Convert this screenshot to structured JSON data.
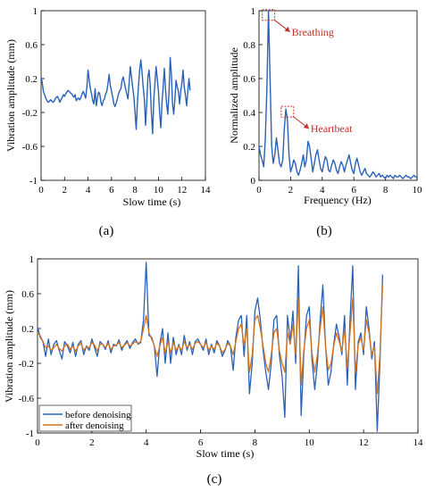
{
  "colors": {
    "blue": "#2a62b8",
    "orange": "#d2731d",
    "annotation": "#c0302a"
  },
  "chart_data": [
    {
      "panel_label": "(a)",
      "type": "line",
      "xlabel": "Slow time (s)",
      "ylabel": "Vibration amplitude (mm)",
      "xlim": [
        0,
        14
      ],
      "ylim": [
        -1,
        1
      ],
      "xticks": [
        "0",
        "2",
        "4",
        "6",
        "8",
        "10",
        "12",
        "14"
      ],
      "yticks": [
        "1",
        "0.6",
        "0.2",
        "-0.2",
        "-0.6",
        "-1"
      ],
      "x": [
        0.0,
        0.1,
        0.2,
        0.3,
        0.4,
        0.5,
        0.6,
        0.7,
        0.8,
        0.9,
        1.0,
        1.1,
        1.2,
        1.3,
        1.4,
        1.5,
        1.6,
        1.7,
        1.8,
        1.9,
        2.0,
        2.1,
        2.2,
        2.3,
        2.4,
        2.5,
        2.6,
        2.7,
        2.8,
        2.9,
        3.0,
        3.1,
        3.2,
        3.3,
        3.4,
        3.5,
        3.6,
        3.7,
        3.8,
        3.9,
        4.0,
        4.1,
        4.2,
        4.3,
        4.4,
        4.5,
        4.6,
        4.7,
        4.8,
        4.9,
        5.0,
        5.1,
        5.2,
        5.3,
        5.4,
        5.5,
        5.6,
        5.7,
        5.8,
        5.9,
        6.0,
        6.1,
        6.2,
        6.3,
        6.4,
        6.5,
        6.6,
        6.7,
        6.8,
        6.9,
        7.0,
        7.1,
        7.2,
        7.3,
        7.4,
        7.5,
        7.6,
        7.7,
        7.8,
        7.9,
        8.0,
        8.1,
        8.2,
        8.3,
        8.4,
        8.5,
        8.6,
        8.7,
        8.8,
        8.9,
        9.0,
        9.1,
        9.2,
        9.3,
        9.4,
        9.5,
        9.6,
        9.7,
        9.8,
        9.9,
        10.0,
        10.1,
        10.2,
        10.3,
        10.4,
        10.5,
        10.6,
        10.7,
        10.8,
        10.9,
        11.0,
        11.1,
        11.2,
        11.3,
        11.4,
        11.5,
        11.6,
        11.7,
        11.8,
        11.9,
        12.0,
        12.1,
        12.2,
        12.3,
        12.4,
        12.5,
        12.6,
        12.7
      ],
      "values": [
        0.22,
        0.15,
        0.05,
        0.01,
        -0.03,
        -0.06,
        -0.08,
        -0.07,
        -0.05,
        -0.06,
        -0.08,
        -0.07,
        -0.04,
        -0.02,
        -0.01,
        -0.04,
        -0.08,
        -0.05,
        -0.02,
        0.01,
        -0.01,
        0.02,
        0.04,
        0.06,
        0.05,
        0.03,
        0.02,
        0.0,
        -0.02,
        0.01,
        -0.06,
        -0.04,
        -0.03,
        -0.05,
        -0.02,
        0.02,
        0.05,
        0.01,
        -0.03,
        0.1,
        0.3,
        0.18,
        0.08,
        0.02,
        -0.06,
        -0.1,
        0.08,
        -0.12,
        -0.03,
        0.04,
        0.02,
        -0.08,
        -0.12,
        -0.06,
        -0.04,
        0.02,
        0.05,
        0.14,
        0.25,
        0.12,
        0.05,
        -0.02,
        -0.1,
        -0.13,
        -0.09,
        -0.04,
        0.02,
        0.06,
        0.08,
        0.18,
        0.22,
        0.15,
        0.08,
        0.02,
        -0.04,
        0.15,
        0.34,
        0.22,
        0.1,
        0.0,
        -0.18,
        -0.4,
        -0.1,
        0.12,
        0.3,
        0.42,
        0.28,
        0.1,
        -0.05,
        -0.35,
        -0.1,
        0.22,
        0.3,
        0.12,
        -0.2,
        -0.45,
        -0.05,
        0.15,
        0.34,
        0.2,
        0.05,
        -0.2,
        -0.38,
        -0.08,
        0.1,
        0.32,
        0.08,
        -0.1,
        -0.22,
        0.05,
        0.45,
        0.25,
        -0.1,
        -0.22,
        -0.05,
        0.18,
        0.1,
        0.05,
        -0.1,
        0.05,
        0.15,
        0.3,
        0.1,
        0.0,
        -0.12,
        0.05,
        0.2,
        0.06
      ]
    },
    {
      "panel_label": "(b)",
      "type": "line",
      "xlabel": "Frequency (Hz)",
      "ylabel": "Normalized amplitude",
      "xlim": [
        0,
        10
      ],
      "ylim": [
        0,
        1
      ],
      "xticks": [
        "0",
        "2",
        "4",
        "6",
        "8",
        "10"
      ],
      "yticks": [
        "1",
        "0.8",
        "0.6",
        "0.4",
        "0.2",
        "0"
      ],
      "x": [
        0.0,
        0.1,
        0.2,
        0.3,
        0.4,
        0.5,
        0.6,
        0.7,
        0.8,
        0.9,
        1.0,
        1.1,
        1.2,
        1.3,
        1.4,
        1.5,
        1.6,
        1.7,
        1.8,
        1.9,
        2.0,
        2.1,
        2.2,
        2.3,
        2.4,
        2.5,
        2.6,
        2.7,
        2.8,
        2.9,
        3.0,
        3.1,
        3.2,
        3.3,
        3.4,
        3.5,
        3.6,
        3.7,
        3.8,
        3.9,
        4.0,
        4.1,
        4.2,
        4.3,
        4.4,
        4.5,
        4.6,
        4.7,
        4.8,
        4.9,
        5.0,
        5.1,
        5.2,
        5.3,
        5.4,
        5.5,
        5.6,
        5.7,
        5.8,
        5.9,
        6.0,
        6.1,
        6.2,
        6.3,
        6.4,
        6.5,
        6.6,
        6.7,
        6.8,
        6.9,
        7.0,
        7.1,
        7.2,
        7.3,
        7.4,
        7.5,
        7.6,
        7.7,
        7.8,
        7.9,
        8.0,
        8.1,
        8.2,
        8.3,
        8.4,
        8.5,
        8.6,
        8.7,
        8.8,
        8.9,
        9.0,
        9.1,
        9.2,
        9.3,
        9.4,
        9.5,
        9.6,
        9.7,
        9.8,
        9.9,
        10.0
      ],
      "values": [
        0.2,
        0.15,
        0.12,
        0.08,
        0.25,
        0.55,
        1.0,
        0.6,
        0.2,
        0.1,
        0.15,
        0.25,
        0.18,
        0.1,
        0.08,
        0.12,
        0.3,
        0.42,
        0.35,
        0.15,
        0.05,
        0.08,
        0.12,
        0.1,
        0.05,
        0.03,
        0.06,
        0.1,
        0.15,
        0.08,
        0.12,
        0.23,
        0.2,
        0.13,
        0.05,
        0.1,
        0.15,
        0.18,
        0.12,
        0.07,
        0.05,
        0.1,
        0.14,
        0.12,
        0.06,
        0.05,
        0.09,
        0.12,
        0.1,
        0.06,
        0.04,
        0.08,
        0.11,
        0.09,
        0.05,
        0.09,
        0.12,
        0.15,
        0.1,
        0.06,
        0.04,
        0.1,
        0.13,
        0.09,
        0.05,
        0.03,
        0.05,
        0.07,
        0.04,
        0.03,
        0.02,
        0.03,
        0.05,
        0.04,
        0.02,
        0.03,
        0.04,
        0.02,
        0.03,
        0.02,
        0.01,
        0.03,
        0.02,
        0.03,
        0.02,
        0.01,
        0.03,
        0.02,
        0.02,
        0.03,
        0.02,
        0.01,
        0.02,
        0.03,
        0.02,
        0.02,
        0.01,
        0.02,
        0.03,
        0.02,
        0.02
      ],
      "annotations": [
        {
          "text": "Breathing",
          "x": 0.6,
          "y": 0.98
        },
        {
          "text": "Heartbeat",
          "x": 1.8,
          "y": 0.41
        }
      ]
    },
    {
      "panel_label": "(c)",
      "type": "line",
      "xlabel": "Slow time (s)",
      "ylabel": "Vibration amplitude (mm)",
      "xlim": [
        0,
        14
      ],
      "ylim": [
        -1,
        1
      ],
      "xticks": [
        "0",
        "2",
        "4",
        "6",
        "8",
        "10",
        "12",
        "14"
      ],
      "yticks": [
        "1",
        "0.6",
        "0.2",
        "-0.2",
        "-0.6",
        "-1"
      ],
      "legend_position": "bottom-left",
      "x": [
        0.0,
        0.1,
        0.2,
        0.3,
        0.4,
        0.5,
        0.6,
        0.7,
        0.8,
        0.9,
        1.0,
        1.1,
        1.2,
        1.3,
        1.4,
        1.5,
        1.6,
        1.7,
        1.8,
        1.9,
        2.0,
        2.1,
        2.2,
        2.3,
        2.4,
        2.5,
        2.6,
        2.7,
        2.8,
        2.9,
        3.0,
        3.1,
        3.2,
        3.3,
        3.4,
        3.5,
        3.6,
        3.7,
        3.8,
        3.9,
        4.0,
        4.1,
        4.2,
        4.3,
        4.4,
        4.5,
        4.6,
        4.7,
        4.8,
        4.9,
        5.0,
        5.1,
        5.2,
        5.3,
        5.4,
        5.5,
        5.6,
        5.7,
        5.8,
        5.9,
        6.0,
        6.1,
        6.2,
        6.3,
        6.4,
        6.5,
        6.6,
        6.7,
        6.8,
        6.9,
        7.0,
        7.1,
        7.2,
        7.3,
        7.4,
        7.5,
        7.6,
        7.7,
        7.8,
        7.9,
        8.0,
        8.1,
        8.2,
        8.3,
        8.4,
        8.5,
        8.6,
        8.7,
        8.8,
        8.9,
        9.0,
        9.1,
        9.2,
        9.3,
        9.4,
        9.5,
        9.6,
        9.7,
        9.8,
        9.9,
        10.0,
        10.1,
        10.2,
        10.3,
        10.4,
        10.5,
        10.6,
        10.7,
        10.8,
        10.9,
        11.0,
        11.1,
        11.2,
        11.3,
        11.4,
        11.5,
        11.6,
        11.7,
        11.8,
        11.9,
        12.0,
        12.1,
        12.2,
        12.3,
        12.4,
        12.5,
        12.6,
        12.7
      ],
      "series": [
        {
          "name": "before denoising",
          "color": "#2a62b8",
          "values": [
            0.22,
            0.1,
            0.05,
            -0.12,
            0.08,
            -0.1,
            0.02,
            0.06,
            -0.05,
            -0.15,
            0.05,
            0.0,
            -0.08,
            0.04,
            -0.12,
            0.02,
            0.06,
            -0.1,
            0.0,
            -0.05,
            0.08,
            -0.02,
            -0.12,
            0.05,
            0.02,
            -0.04,
            0.06,
            -0.08,
            0.02,
            0.0,
            0.07,
            -0.05,
            0.02,
            0.06,
            -0.03,
            0.04,
            0.08,
            0.02,
            0.04,
            0.3,
            0.96,
            0.12,
            0.1,
            0.0,
            -0.35,
            0.02,
            0.2,
            -0.2,
            0.15,
            -0.2,
            0.1,
            -0.1,
            0.02,
            -0.1,
            0.12,
            -0.05,
            0.05,
            -0.1,
            0.05,
            0.08,
            0.02,
            -0.05,
            0.08,
            -0.1,
            0.02,
            -0.08,
            0.06,
            0.0,
            -0.12,
            -0.05,
            0.06,
            0.0,
            -0.28,
            0.1,
            0.3,
            0.35,
            -0.12,
            0.35,
            -0.55,
            -0.2,
            0.4,
            0.55,
            0.3,
            -0.05,
            -0.3,
            -0.5,
            -0.2,
            0.3,
            0.35,
            -0.1,
            -0.35,
            -0.82,
            0.35,
            0.05,
            0.4,
            -0.2,
            0.92,
            -0.8,
            -0.1,
            0.35,
            0.45,
            -0.15,
            -0.5,
            -0.2,
            0.3,
            0.7,
            0.0,
            -0.45,
            -0.3,
            0.02,
            0.25,
            0.1,
            -0.1,
            0.35,
            -0.45,
            0.3,
            0.92,
            -0.5,
            0.05,
            0.15,
            -0.1,
            0.45,
            0.2,
            -0.15,
            0.05,
            -0.98,
            -0.2,
            0.82
          ]
        },
        {
          "name": "after denoising",
          "color": "#d2731d",
          "values": [
            0.15,
            0.12,
            0.05,
            -0.02,
            0.0,
            -0.05,
            -0.02,
            0.02,
            -0.03,
            -0.06,
            0.0,
            0.02,
            -0.04,
            0.0,
            -0.06,
            0.0,
            0.03,
            -0.05,
            -0.01,
            -0.02,
            0.04,
            0.01,
            -0.06,
            0.02,
            0.02,
            -0.02,
            0.03,
            -0.04,
            0.0,
            0.01,
            0.04,
            -0.02,
            0.01,
            0.04,
            0.0,
            0.02,
            0.05,
            0.03,
            0.05,
            0.2,
            0.35,
            0.15,
            0.08,
            0.0,
            -0.12,
            0.0,
            0.1,
            -0.08,
            0.05,
            -0.08,
            0.04,
            -0.05,
            0.0,
            -0.05,
            0.05,
            -0.02,
            0.02,
            -0.04,
            0.03,
            0.05,
            0.02,
            -0.02,
            0.04,
            -0.05,
            0.0,
            -0.04,
            0.03,
            0.0,
            -0.08,
            -0.04,
            0.03,
            0.0,
            -0.1,
            0.05,
            0.2,
            0.25,
            0.0,
            0.2,
            -0.3,
            -0.1,
            0.3,
            0.35,
            0.2,
            0.0,
            -0.2,
            -0.3,
            -0.1,
            0.15,
            0.2,
            -0.05,
            -0.2,
            -0.3,
            0.15,
            0.02,
            0.25,
            -0.1,
            0.55,
            -0.45,
            -0.05,
            0.2,
            0.3,
            -0.08,
            -0.3,
            -0.1,
            0.2,
            0.45,
            0.0,
            -0.28,
            -0.2,
            0.0,
            0.15,
            0.05,
            -0.06,
            0.2,
            -0.25,
            0.15,
            0.55,
            -0.3,
            0.02,
            0.1,
            -0.05,
            0.3,
            0.15,
            -0.1,
            0.0,
            -0.55,
            -0.1,
            0.7
          ]
        }
      ]
    }
  ]
}
